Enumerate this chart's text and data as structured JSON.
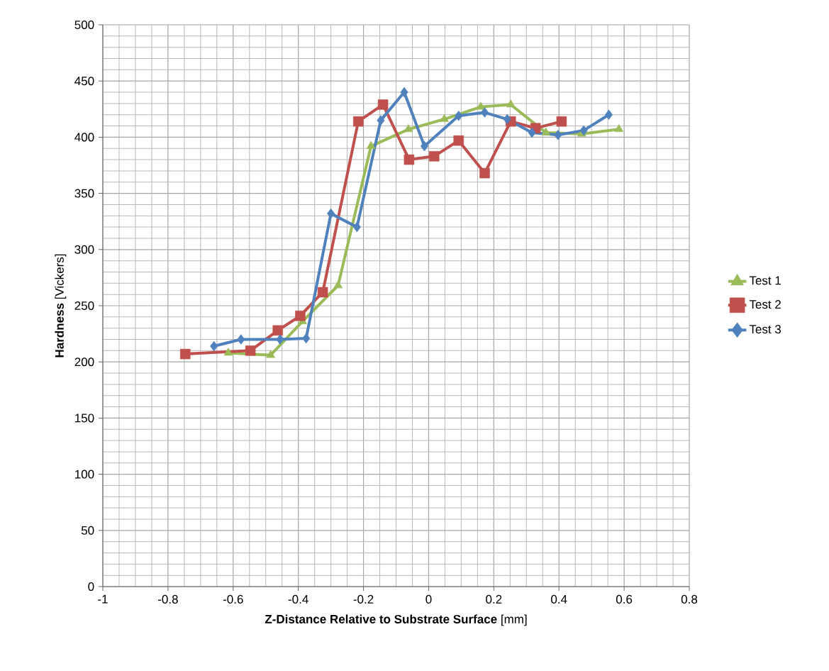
{
  "chart_data": {
    "type": "line",
    "xlabel": "**Z-Distance Relative to Substrate Surface** [mm]",
    "ylabel": "**Hardness** [Vickers]",
    "xlim": [
      -1,
      0.8
    ],
    "ylim": [
      0,
      500
    ],
    "xticks": [
      -1,
      -0.8,
      -0.6,
      -0.4,
      -0.2,
      0,
      0.2,
      0.4,
      0.6,
      0.8
    ],
    "yticks": [
      0,
      50,
      100,
      150,
      200,
      250,
      300,
      350,
      400,
      450,
      500
    ],
    "grid": true,
    "legend": "right",
    "line_style": "solid",
    "series": [
      {
        "name": "Test 1",
        "color": "#9bbb59",
        "marker": "triangle",
        "x": [
          -0.615,
          -0.485,
          -0.387,
          -0.278,
          -0.177,
          -0.062,
          0.048,
          0.16,
          0.252,
          0.36,
          0.47,
          0.584
        ],
        "values": [
          208,
          206,
          236,
          268,
          392,
          407,
          416,
          427,
          429,
          404,
          403,
          407
        ]
      },
      {
        "name": "Test 2",
        "color": "#c0504d",
        "marker": "square",
        "x": [
          -0.747,
          -0.547,
          -0.463,
          -0.394,
          -0.325,
          -0.216,
          -0.14,
          -0.06,
          0.017,
          0.092,
          0.172,
          0.252,
          0.328,
          0.408
        ],
        "values": [
          207,
          210,
          228,
          241,
          262,
          414,
          429,
          380,
          383,
          397,
          368,
          414,
          408,
          414
        ]
      },
      {
        "name": "Test 3",
        "color": "#4f81bd",
        "marker": "diamond",
        "x": [
          -0.659,
          -0.576,
          -0.456,
          -0.376,
          -0.3,
          -0.22,
          -0.147,
          -0.075,
          -0.013,
          0.092,
          0.172,
          0.241,
          0.317,
          0.397,
          0.476,
          0.553
        ],
        "values": [
          214,
          220,
          220,
          221,
          332,
          320,
          415,
          440,
          392,
          419,
          422,
          416,
          404,
          402,
          406,
          420
        ]
      }
    ]
  }
}
